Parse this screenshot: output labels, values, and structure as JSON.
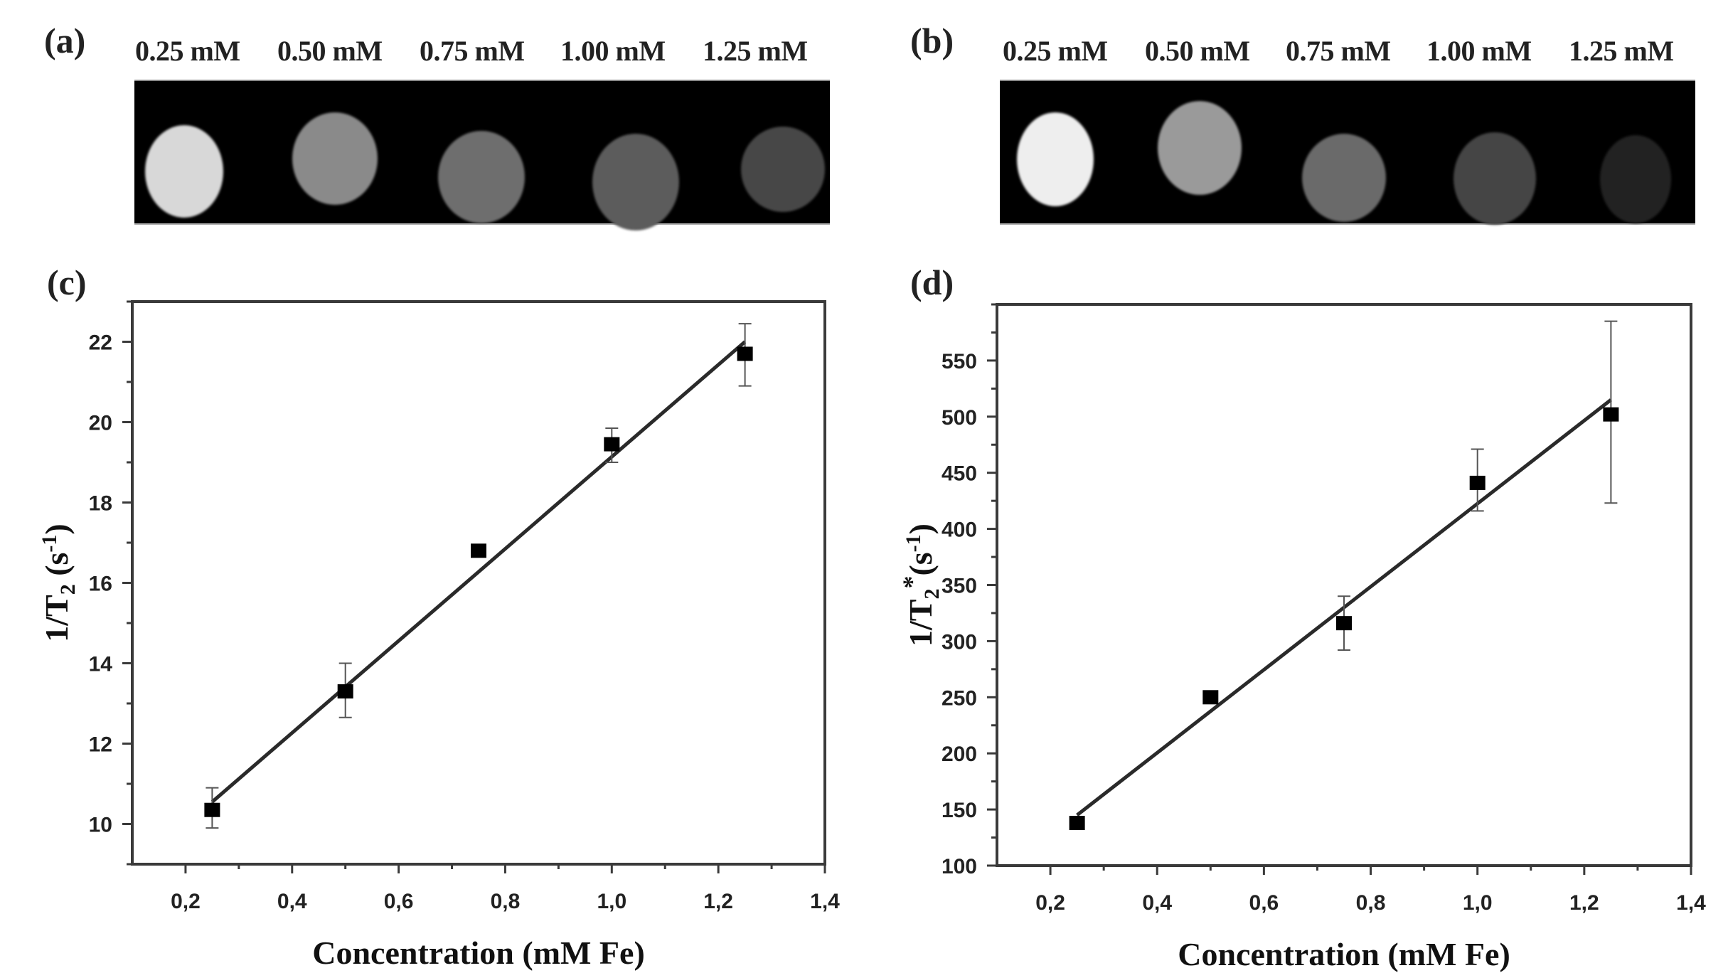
{
  "panels": {
    "a": {
      "label": "(a)",
      "concentrations": [
        "0.25 mM",
        "0.50 mM",
        "0.75 mM",
        "1.00 mM",
        "1.25 mM"
      ],
      "phantom_brightness": [
        "#d8d8d8",
        "#8a8a8a",
        "#6e6e6e",
        "#5c5c5c",
        "#474747"
      ]
    },
    "b": {
      "label": "(b)",
      "concentrations": [
        "0.25 mM",
        "0.50 mM",
        "0.75 mM",
        "1.00 mM",
        "1.25 mM"
      ],
      "phantom_brightness": [
        "#eeeeee",
        "#9a9a9a",
        "#6a6a6a",
        "#454545",
        "#222222"
      ]
    },
    "c": {
      "label": "(c)"
    },
    "d": {
      "label": "(d)"
    }
  },
  "chart_data": [
    {
      "panel": "c",
      "type": "scatter",
      "title": "",
      "xlabel": "Concentration (mM Fe)",
      "ylabel": "1/T2 (s-1)",
      "xlim": [
        0.1,
        1.4
      ],
      "ylim": [
        9,
        23
      ],
      "x_ticks": [
        "0,2",
        "0,4",
        "0,6",
        "0,8",
        "1,0",
        "1,2",
        "1,4"
      ],
      "y_ticks": [
        "10",
        "12",
        "14",
        "16",
        "18",
        "20",
        "22"
      ],
      "grid": false,
      "legend": null,
      "series": [
        {
          "name": "1/T2",
          "marker": "square",
          "x": [
            0.25,
            0.5,
            0.75,
            1.0,
            1.25
          ],
          "y": [
            10.35,
            13.3,
            16.8,
            19.45,
            21.7
          ],
          "yerr_low": [
            9.9,
            12.65,
            16.8,
            19.0,
            20.9
          ],
          "yerr_high": [
            10.9,
            14.0,
            16.8,
            19.85,
            22.45
          ]
        }
      ],
      "fit_line": {
        "x": [
          0.25,
          1.25
        ],
        "y": [
          10.55,
          22.0
        ]
      }
    },
    {
      "panel": "d",
      "type": "scatter",
      "title": "",
      "xlabel": "Concentration (mM Fe)",
      "ylabel": "1/T2* (s-1)",
      "xlim": [
        0.1,
        1.4
      ],
      "ylim": [
        100,
        600
      ],
      "x_ticks": [
        "0,2",
        "0,4",
        "0,6",
        "0,8",
        "1,0",
        "1,2",
        "1,4"
      ],
      "y_ticks": [
        "100",
        "150",
        "200",
        "250",
        "300",
        "350",
        "400",
        "450",
        "500",
        "550"
      ],
      "grid": false,
      "legend": null,
      "series": [
        {
          "name": "1/T2*",
          "marker": "square",
          "x": [
            0.25,
            0.5,
            0.75,
            1.0,
            1.25
          ],
          "y": [
            138,
            250,
            316,
            441,
            502
          ],
          "yerr_low": [
            138,
            250,
            292,
            416,
            423
          ],
          "yerr_high": [
            138,
            250,
            340,
            471,
            585
          ]
        }
      ],
      "fit_line": {
        "x": [
          0.25,
          1.25
        ],
        "y": [
          145,
          515
        ]
      }
    }
  ]
}
